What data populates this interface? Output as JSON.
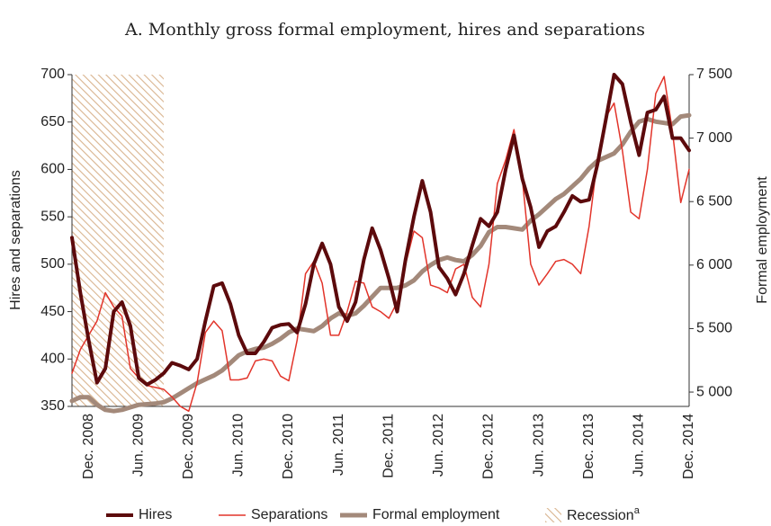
{
  "chart_data": {
    "type": "line",
    "title": "A. Monthly gross formal employment, hires and separations",
    "ylabel": "Hires and separations",
    "y2label": "Formal employment",
    "categories": [
      null,
      null,
      "Dec. 2008",
      null,
      null,
      null,
      null,
      null,
      "Jun. 2009",
      null,
      null,
      null,
      null,
      null,
      "Dec. 2009",
      null,
      null,
      null,
      null,
      null,
      "Jun. 2010",
      null,
      null,
      null,
      null,
      null,
      "Dec. 2010",
      null,
      null,
      null,
      null,
      null,
      "Jun. 2011",
      null,
      null,
      null,
      null,
      null,
      "Dec. 2011",
      null,
      null,
      null,
      null,
      null,
      "Jun. 2012",
      null,
      null,
      null,
      null,
      null,
      "Dec. 2012",
      null,
      null,
      null,
      null,
      null,
      "Jun. 2013",
      null,
      null,
      null,
      null,
      null,
      "Dec. 2013",
      null,
      null,
      null,
      null,
      null,
      "Jun. 2014",
      null,
      null,
      null,
      null,
      null,
      "Dec. 2014"
    ],
    "series": [
      {
        "name": "Hires",
        "color": "#5c0a0c",
        "width": 4,
        "axis": "y",
        "values": [
          528,
          470,
          420,
          375,
          390,
          450,
          460,
          435,
          380,
          373,
          378,
          385,
          396,
          393,
          389,
          400,
          440,
          477,
          480,
          458,
          425,
          406,
          406,
          418,
          433,
          436,
          437,
          428,
          458,
          500,
          522,
          500,
          455,
          440,
          460,
          505,
          538,
          515,
          485,
          450,
          505,
          550,
          588,
          555,
          497,
          485,
          468,
          490,
          520,
          548,
          540,
          555,
          600,
          636,
          590,
          560,
          518,
          535,
          540,
          555,
          572,
          566,
          568,
          605,
          652,
          700,
          690,
          650,
          615,
          660,
          663,
          677,
          633,
          633,
          620
        ]
      },
      {
        "name": "Separations",
        "color": "#e2342a",
        "width": 1.5,
        "axis": "y",
        "values": [
          385,
          410,
          425,
          440,
          470,
          455,
          445,
          390,
          380,
          372,
          370,
          368,
          360,
          350,
          345,
          375,
          428,
          440,
          430,
          378,
          378,
          380,
          398,
          400,
          398,
          382,
          377,
          420,
          490,
          503,
          480,
          425,
          425,
          450,
          482,
          480,
          455,
          450,
          443,
          460,
          500,
          535,
          528,
          478,
          475,
          470,
          495,
          500,
          465,
          455,
          500,
          585,
          610,
          642,
          590,
          500,
          478,
          490,
          503,
          505,
          500,
          490,
          540,
          610,
          655,
          670,
          620,
          555,
          548,
          600,
          680,
          698,
          640,
          565,
          600
        ]
      },
      {
        "name": "Formal employment",
        "color": "#a3897a",
        "width": 5,
        "axis": "y2",
        "values": [
          4930,
          4960,
          4960,
          4900,
          4860,
          4850,
          4860,
          4880,
          4900,
          4905,
          4910,
          4920,
          4950,
          4990,
          5030,
          5070,
          5100,
          5130,
          5170,
          5230,
          5290,
          5320,
          5340,
          5350,
          5380,
          5420,
          5470,
          5500,
          5490,
          5480,
          5520,
          5580,
          5620,
          5600,
          5620,
          5680,
          5750,
          5820,
          5820,
          5820,
          5840,
          5880,
          5950,
          6000,
          6040,
          6060,
          6040,
          6030,
          6080,
          6150,
          6260,
          6300,
          6300,
          6290,
          6280,
          6350,
          6400,
          6460,
          6520,
          6560,
          6620,
          6680,
          6760,
          6820,
          6850,
          6880,
          6950,
          7050,
          7130,
          7150,
          7130,
          7120,
          7110,
          7170,
          7180
        ]
      }
    ],
    "recession": {
      "name": "Recession",
      "note": "a",
      "start": 0,
      "end": 11,
      "color": "#d9b48f"
    },
    "ylim": [
      350,
      700
    ],
    "yticks": [
      350,
      400,
      450,
      500,
      550,
      600,
      650,
      700
    ],
    "y2lim": [
      4887,
      7500
    ],
    "y2ticks": [
      {
        "value": 5000,
        "label": "5 000"
      },
      {
        "value": 5500,
        "label": "5 500"
      },
      {
        "value": 6000,
        "label": "6 000"
      },
      {
        "value": 6500,
        "label": "6 500"
      },
      {
        "value": 7000,
        "label": "7 000"
      },
      {
        "value": 7500,
        "label": "7 500"
      }
    ],
    "grid": false
  }
}
